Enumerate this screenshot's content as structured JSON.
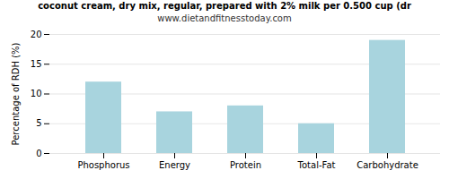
{
  "chart_data": {
    "type": "bar",
    "title": "coconut cream, dry mix, regular, prepared with 2% milk per 0.500 cup (dr",
    "subtitle": "www.dietandfitnesstoday.com",
    "categories": [
      "Phosphorus",
      "Energy",
      "Protein",
      "Total-Fat",
      "Carbohydrate"
    ],
    "values": [
      12,
      7,
      8,
      5,
      19
    ],
    "color": "#a8d4de",
    "ylabel": "Percentage of RDH (%)",
    "ylim": [
      0,
      20
    ],
    "yticks": [
      0,
      5,
      10,
      15,
      20
    ],
    "grid": true
  }
}
